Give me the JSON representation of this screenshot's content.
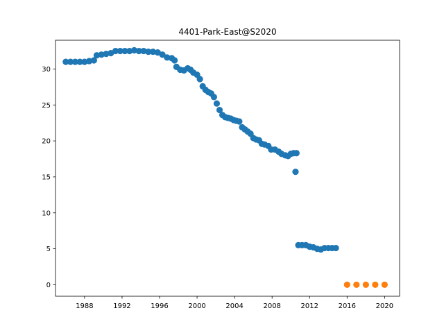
{
  "chart_data": {
    "type": "scatter",
    "title": "4401-Park-East@S2020",
    "xlabel": "",
    "ylabel": "",
    "xlim": [
      1984.9,
      2021.6
    ],
    "ylim": [
      -1.6,
      34.0
    ],
    "x_ticks": [
      1988,
      1992,
      1996,
      2000,
      2004,
      2008,
      2012,
      2016,
      2020
    ],
    "y_ticks": [
      0,
      5,
      10,
      15,
      20,
      25,
      30
    ],
    "grid": false,
    "series": [
      {
        "color": "#1f77b4",
        "points": [
          [
            1986.0,
            31.0
          ],
          [
            1986.5,
            31.0
          ],
          [
            1987.0,
            31.0
          ],
          [
            1987.5,
            31.0
          ],
          [
            1988.0,
            31.0
          ],
          [
            1988.5,
            31.1
          ],
          [
            1989.0,
            31.2
          ],
          [
            1989.3,
            31.9
          ],
          [
            1989.8,
            32.0
          ],
          [
            1990.3,
            32.1
          ],
          [
            1990.8,
            32.2
          ],
          [
            1991.3,
            32.5
          ],
          [
            1991.8,
            32.5
          ],
          [
            1992.3,
            32.5
          ],
          [
            1992.8,
            32.5
          ],
          [
            1993.3,
            32.6
          ],
          [
            1993.8,
            32.5
          ],
          [
            1994.3,
            32.5
          ],
          [
            1994.8,
            32.4
          ],
          [
            1995.3,
            32.4
          ],
          [
            1995.8,
            32.3
          ],
          [
            1996.3,
            32.0
          ],
          [
            1996.8,
            31.6
          ],
          [
            1997.3,
            31.5
          ],
          [
            1997.6,
            31.2
          ],
          [
            1997.8,
            30.3
          ],
          [
            1998.2,
            29.9
          ],
          [
            1998.6,
            29.8
          ],
          [
            1999.0,
            30.1
          ],
          [
            1999.3,
            29.9
          ],
          [
            1999.6,
            29.5
          ],
          [
            2000.0,
            29.2
          ],
          [
            2000.3,
            28.6
          ],
          [
            2000.6,
            27.6
          ],
          [
            2000.9,
            27.1
          ],
          [
            2001.2,
            26.8
          ],
          [
            2001.5,
            26.6
          ],
          [
            2001.8,
            26.1
          ],
          [
            2002.1,
            25.2
          ],
          [
            2002.4,
            24.3
          ],
          [
            2002.7,
            23.6
          ],
          [
            2003.0,
            23.3
          ],
          [
            2003.3,
            23.2
          ],
          [
            2003.6,
            23.1
          ],
          [
            2003.9,
            22.9
          ],
          [
            2004.2,
            22.8
          ],
          [
            2004.5,
            22.7
          ],
          [
            2004.8,
            21.9
          ],
          [
            2005.1,
            21.6
          ],
          [
            2005.4,
            21.3
          ],
          [
            2005.7,
            21.0
          ],
          [
            2006.0,
            20.4
          ],
          [
            2006.3,
            20.2
          ],
          [
            2006.6,
            20.1
          ],
          [
            2006.9,
            19.6
          ],
          [
            2007.2,
            19.5
          ],
          [
            2007.6,
            19.3
          ],
          [
            2007.9,
            18.8
          ],
          [
            2008.3,
            18.8
          ],
          [
            2008.7,
            18.5
          ],
          [
            2009.0,
            18.2
          ],
          [
            2009.4,
            18.0
          ],
          [
            2009.7,
            17.9
          ],
          [
            2010.0,
            18.2
          ],
          [
            2010.3,
            18.3
          ],
          [
            2010.6,
            18.3
          ],
          [
            2010.5,
            15.7
          ],
          [
            2010.8,
            5.5
          ],
          [
            2011.2,
            5.5
          ],
          [
            2011.6,
            5.5
          ],
          [
            2012.0,
            5.3
          ],
          [
            2012.4,
            5.2
          ],
          [
            2012.8,
            5.0
          ],
          [
            2013.2,
            4.9
          ],
          [
            2013.6,
            5.1
          ],
          [
            2014.0,
            5.1
          ],
          [
            2014.4,
            5.1
          ],
          [
            2014.8,
            5.1
          ]
        ]
      },
      {
        "color": "#ff7f0e",
        "points": [
          [
            2016.0,
            0
          ],
          [
            2017.0,
            0
          ],
          [
            2018.0,
            0
          ],
          [
            2019.0,
            0
          ],
          [
            2020.0,
            0
          ]
        ]
      }
    ]
  }
}
